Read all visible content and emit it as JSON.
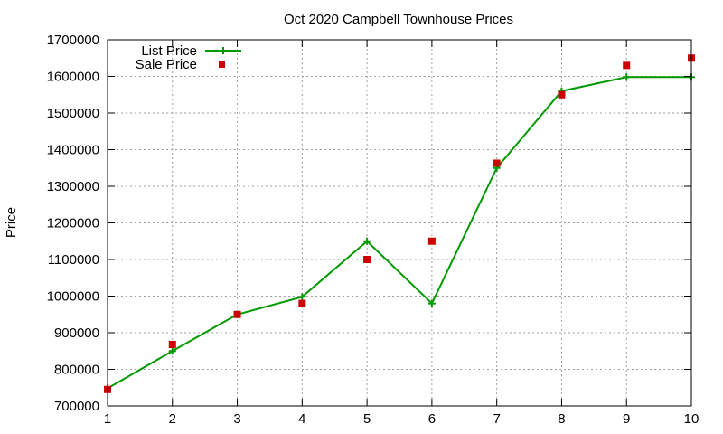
{
  "chart_data": {
    "type": "line",
    "title": "Oct 2020 Campbell Townhouse Prices",
    "xlabel": "",
    "ylabel": "Price",
    "xlim": [
      1,
      10
    ],
    "ylim": [
      700000,
      1700000
    ],
    "xticks": [
      1,
      2,
      3,
      4,
      5,
      6,
      7,
      8,
      9,
      10
    ],
    "yticks": [
      700000,
      800000,
      900000,
      1000000,
      1100000,
      1200000,
      1300000,
      1400000,
      1500000,
      1600000,
      1700000
    ],
    "xtick_labels": [
      "1",
      "2",
      "3",
      "4",
      "5",
      "6",
      "7",
      "8",
      "9",
      "10"
    ],
    "ytick_labels": [
      "700000",
      "800000",
      "900000",
      "1000000",
      "1100000",
      "1200000",
      "1300000",
      "1400000",
      "1500000",
      "1600000",
      "1700000"
    ],
    "grid": true,
    "legend_position": "top-left",
    "x": [
      1,
      2,
      3,
      4,
      5,
      6,
      7,
      8,
      9,
      10
    ],
    "series": [
      {
        "name": "List Price",
        "style": "line-with-plus-markers",
        "color": "#009900",
        "values": [
          748000,
          850000,
          950000,
          998000,
          1150000,
          980000,
          1350000,
          1560000,
          1598000,
          1598000
        ]
      },
      {
        "name": "Sale Price",
        "style": "square-markers",
        "color": "#cc0000",
        "values": [
          745000,
          868000,
          950000,
          980000,
          1100000,
          1150000,
          1363000,
          1550000,
          1630000,
          1650000
        ]
      }
    ]
  }
}
